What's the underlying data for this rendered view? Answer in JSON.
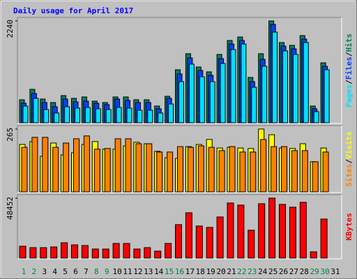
{
  "chart_data": [
    {
      "type": "bar",
      "title": "Daily usage for April 2017",
      "categories": [
        "1",
        "2",
        "3",
        "4",
        "5",
        "6",
        "7",
        "8",
        "9",
        "10",
        "11",
        "12",
        "13",
        "14",
        "15",
        "16",
        "17",
        "18",
        "19",
        "20",
        "21",
        "22",
        "23",
        "24",
        "25",
        "26",
        "27",
        "28",
        "29",
        "30",
        "31"
      ],
      "category_colors": [
        "#008040",
        "#008040",
        "#000000",
        "#000000",
        "#000000",
        "#000000",
        "#000000",
        "#008040",
        "#008040",
        "#000000",
        "#000000",
        "#000000",
        "#000000",
        "#000000",
        "#008040",
        "#008040",
        "#000000",
        "#000000",
        "#000000",
        "#000000",
        "#000000",
        "#008040",
        "#008040",
        "#000000",
        "#000000",
        "#000000",
        "#000000",
        "#000000",
        "#008040",
        "#008040",
        "#000000"
      ],
      "separator": "/",
      "ylim": [
        0,
        2240
      ],
      "yticks": [
        2240
      ],
      "series": [
        {
          "name": "Hits",
          "color": "#00805c",
          "values": [
            506,
            736,
            522,
            445,
            598,
            537,
            568,
            476,
            445,
            568,
            568,
            506,
            506,
            368,
            583,
            1166,
            1519,
            1227,
            1120,
            1503,
            1810,
            1887,
            997,
            1519,
            2240,
            1764,
            1703,
            1918,
            368,
            1319,
            0
          ]
        },
        {
          "name": "Files",
          "color": "#0040ff",
          "values": [
            430,
            644,
            445,
            353,
            522,
            460,
            476,
            430,
            399,
            522,
            491,
            445,
            445,
            307,
            537,
            1074,
            1427,
            1151,
            1043,
            1411,
            1733,
            1810,
            905,
            1396,
            2163,
            1687,
            1626,
            1841,
            307,
            1243,
            0
          ]
        },
        {
          "name": "Pages",
          "color": "#00e0ff",
          "values": [
            368,
            537,
            291,
            215,
            353,
            322,
            337,
            307,
            291,
            337,
            322,
            276,
            276,
            215,
            414,
            905,
            1289,
            1012,
            905,
            1304,
            1611,
            1733,
            782,
            1243,
            1994,
            1580,
            1503,
            1764,
            245,
            1166,
            0
          ]
        }
      ]
    },
    {
      "type": "bar",
      "separator": "/",
      "ylim": [
        0,
        265
      ],
      "yticks": [
        265
      ],
      "series": [
        {
          "name": "Visits",
          "color": "#ffff00",
          "values": [
            200,
            212,
            150,
            206,
            156,
            165,
            200,
            212,
            180,
            180,
            194,
            209,
            203,
            171,
            144,
            141,
            191,
            200,
            221,
            185,
            188,
            185,
            183,
            265,
            241,
            185,
            183,
            203,
            127,
            185,
            0
          ]
        },
        {
          "name": "Sites",
          "color": "#ff8000",
          "values": [
            188,
            230,
            230,
            188,
            206,
            224,
            236,
            180,
            183,
            224,
            224,
            203,
            203,
            168,
            168,
            191,
            188,
            194,
            188,
            174,
            191,
            168,
            168,
            221,
            191,
            191,
            174,
            174,
            127,
            168,
            0
          ]
        }
      ]
    },
    {
      "type": "bar",
      "ylim": [
        0,
        48452
      ],
      "yticks": [
        48452
      ],
      "series": [
        {
          "name": "KBytes",
          "color": "#ff0000",
          "values": [
            9575,
            8449,
            8449,
            9012,
            12392,
            10702,
            10139,
            7324,
            7324,
            11829,
            11829,
            7324,
            8449,
            5633,
            11829,
            27038,
            36614,
            25912,
            24785,
            33235,
            44501,
            42811,
            22532,
            43937,
            48452,
            43374,
            41121,
            45064,
            5070,
            31545,
            0
          ]
        }
      ]
    }
  ]
}
